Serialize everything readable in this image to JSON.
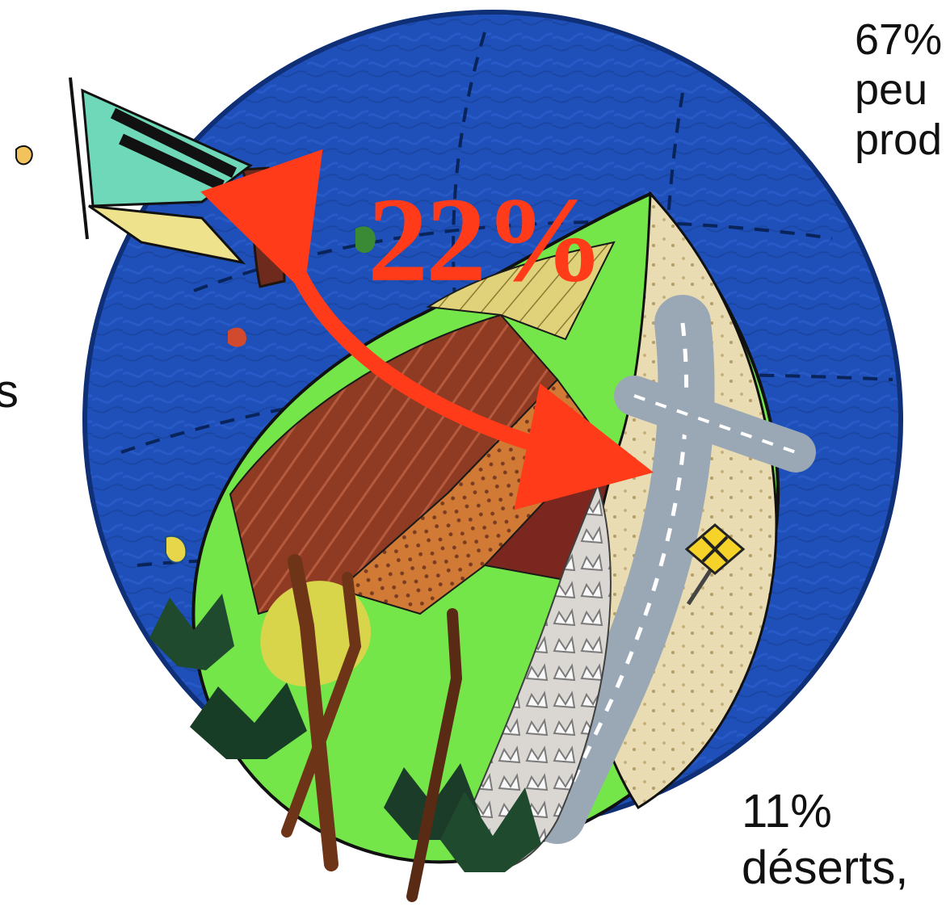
{
  "labels": {
    "top_right": "67%\npeu\nprod",
    "left": "s",
    "bottom_right": "11%\ndéserts,"
  },
  "highlight": {
    "value": "22%",
    "color": "#ff3b1a"
  },
  "colors": {
    "ocean": "#1f4fb8",
    "land_green": "#74e64a",
    "field_brown": "#8f3b24",
    "field_orange": "#d07a35",
    "field_yellow": "#e0d27a",
    "road": "#9aa8b6",
    "forest": "#1f4a2e"
  }
}
